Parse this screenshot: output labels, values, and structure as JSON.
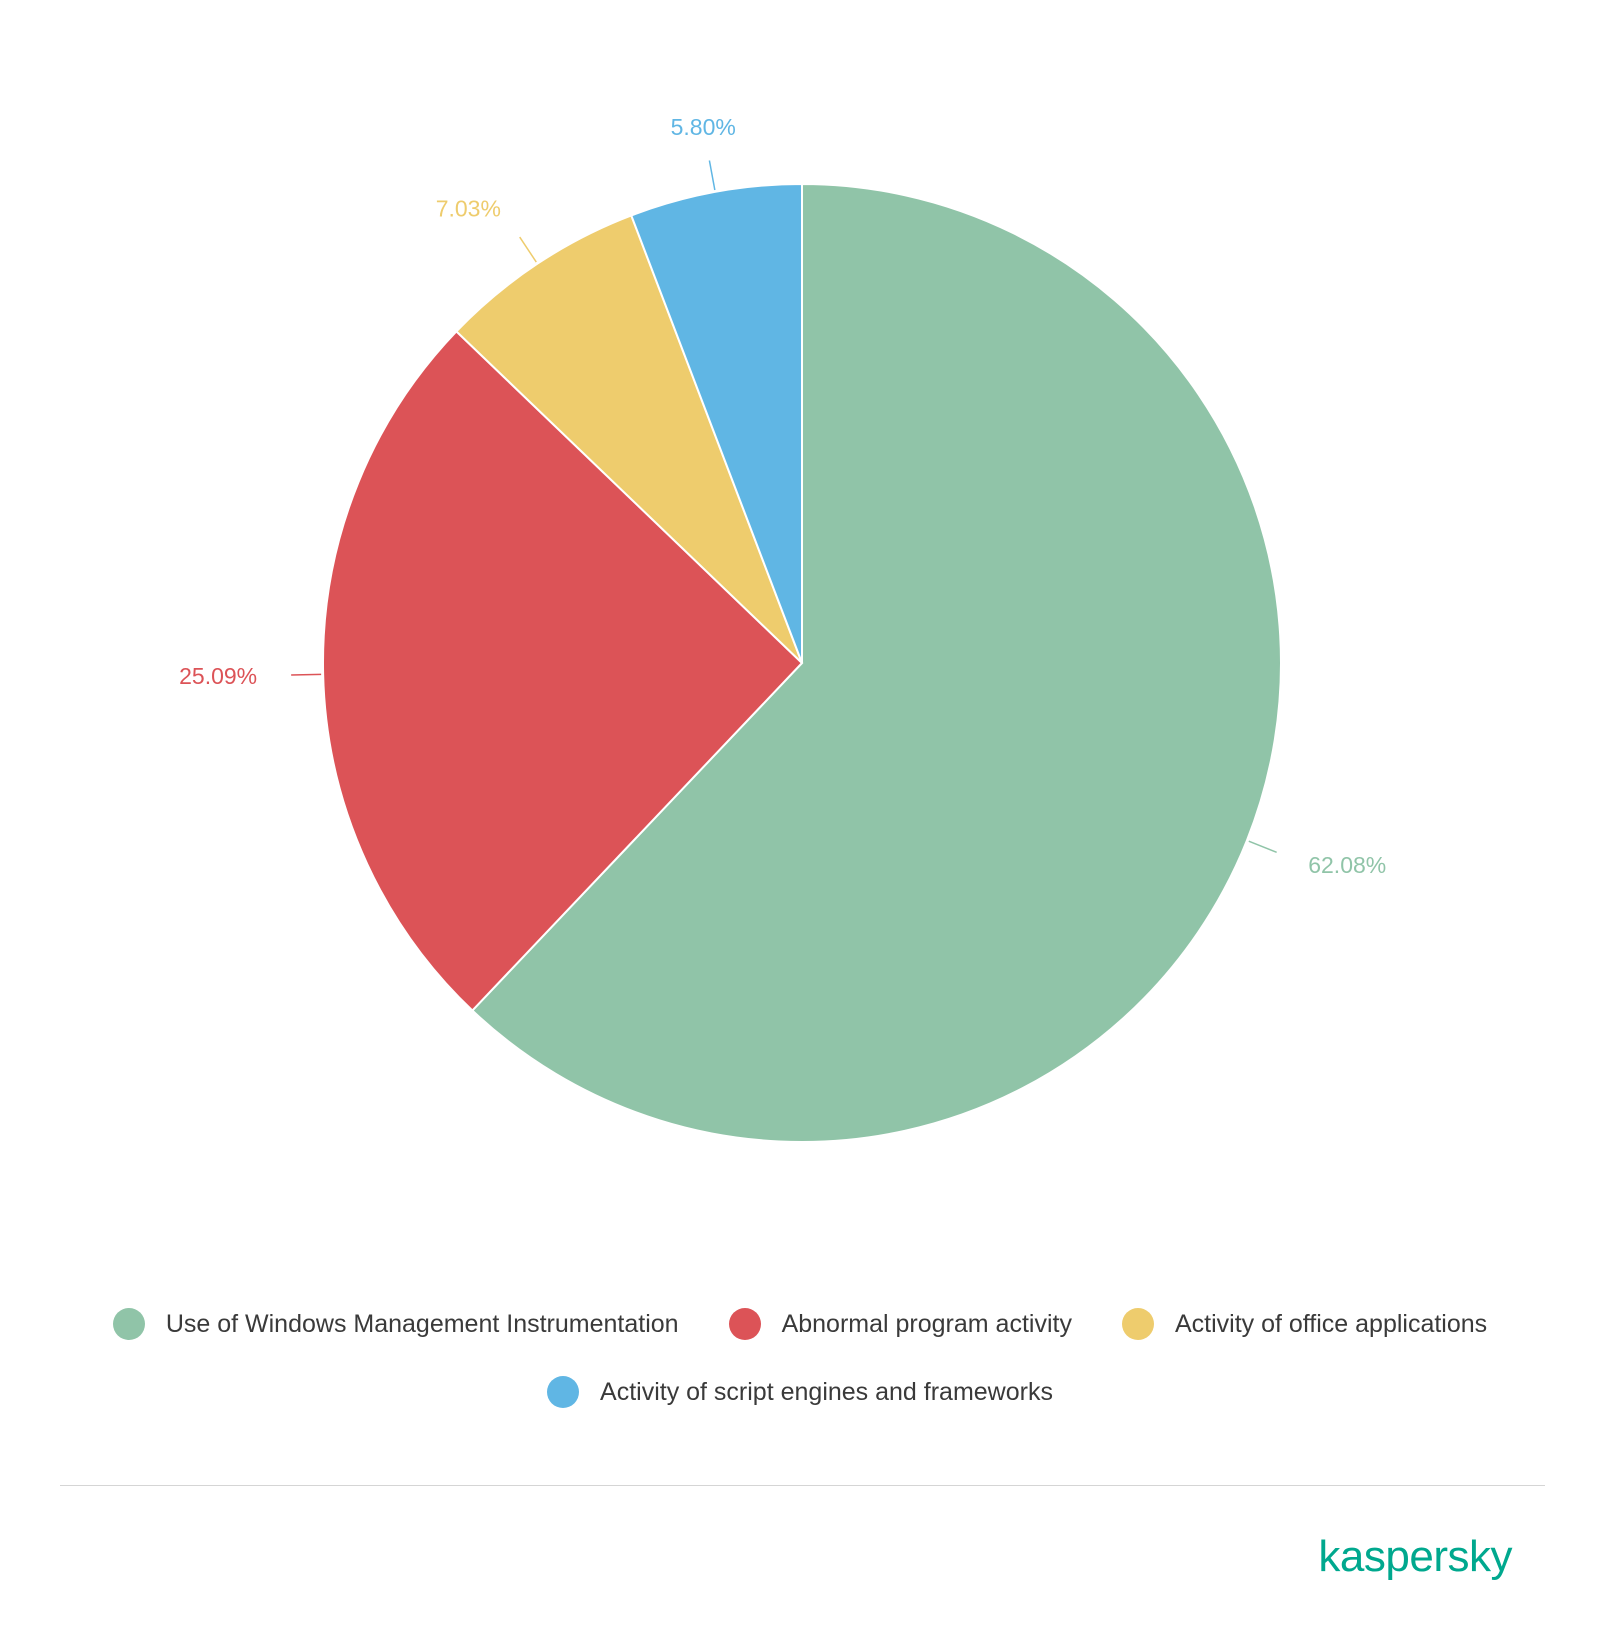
{
  "chart_data": {
    "type": "pie",
    "start_angle_deg": 0,
    "direction": "clockwise",
    "slices": [
      {
        "name": "Use of Windows Management Instrumentation",
        "value": 62.08,
        "label": "62.08%",
        "color": "#90c4a8"
      },
      {
        "name": "Abnormal program activity",
        "value": 25.09,
        "label": "25.09%",
        "color": "#dc5357"
      },
      {
        "name": "Activity of office applications",
        "value": 7.03,
        "label": "7.03%",
        "color": "#eecc6d"
      },
      {
        "name": "Activity of script engines and frameworks",
        "value": 5.8,
        "label": "5.80%",
        "color": "#60b6e4"
      }
    ],
    "legend_position": "bottom"
  },
  "legend": {
    "items": [
      {
        "label": "Use of Windows Management Instrumentation",
        "color": "#90c4a8"
      },
      {
        "label": "Abnormal program activity",
        "color": "#dc5357"
      },
      {
        "label": "Activity of office applications",
        "color": "#eecc6d"
      },
      {
        "label": "Activity of script engines and frameworks",
        "color": "#60b6e4"
      }
    ]
  },
  "brand": {
    "logo_text": "kaspersky",
    "color": "#00a88e"
  }
}
